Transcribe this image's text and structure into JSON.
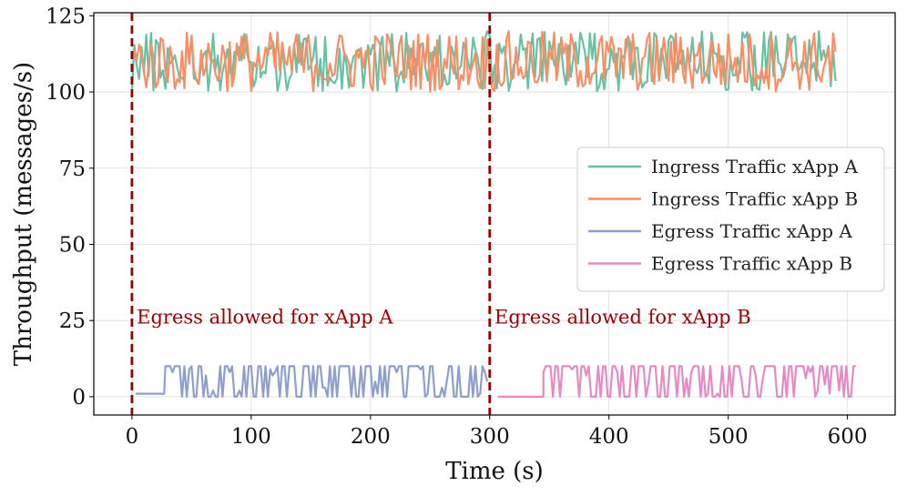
{
  "chart_data": {
    "type": "line",
    "title": "",
    "xlabel": "Time (s)",
    "ylabel": "Throughput (messages/s)",
    "xlim": [
      -32,
      640
    ],
    "ylim": [
      -6,
      126
    ],
    "xticks": [
      0,
      100,
      200,
      300,
      400,
      500,
      600
    ],
    "yticks": [
      0,
      25,
      50,
      75,
      100,
      125
    ],
    "grid": true,
    "legend_position": "center-right",
    "series": [
      {
        "name": "Ingress Traffic xApp A",
        "color": "#66c2a5",
        "x_range": [
          0,
          590
        ],
        "value_range": [
          100,
          120
        ],
        "segments": [
          [
            0,
            590,
            110
          ]
        ]
      },
      {
        "name": "Ingress Traffic xApp B",
        "color": "#fc8d62",
        "x_range": [
          0,
          590
        ],
        "value_range": [
          100,
          120
        ],
        "segments": [
          [
            0,
            590,
            110
          ]
        ]
      },
      {
        "name": "Egress Traffic xApp A",
        "color": "#8da0cb",
        "x_range": [
          3,
          298
        ],
        "value_range": [
          0,
          10
        ],
        "segments": [
          [
            3,
            28,
            1
          ],
          [
            28,
            298,
            10
          ]
        ]
      },
      {
        "name": "Egress Traffic xApp B",
        "color": "#e78ac3",
        "x_range": [
          307,
          608
        ],
        "value_range": [
          0,
          10
        ],
        "segments": [
          [
            307,
            345,
            0
          ],
          [
            345,
            608,
            10
          ]
        ]
      }
    ],
    "vlines": [
      {
        "x": 0,
        "color": "#9b0000",
        "style": "dashed"
      },
      {
        "x": 300,
        "color": "#9b0000",
        "style": "dashed"
      }
    ],
    "annotations": [
      {
        "text": "Egress allowed for xApp A",
        "x": 4,
        "y": 24,
        "color": "#9b0000"
      },
      {
        "text": "Egress allowed for xApp B",
        "x": 304,
        "y": 24,
        "color": "#9b0000"
      }
    ]
  }
}
